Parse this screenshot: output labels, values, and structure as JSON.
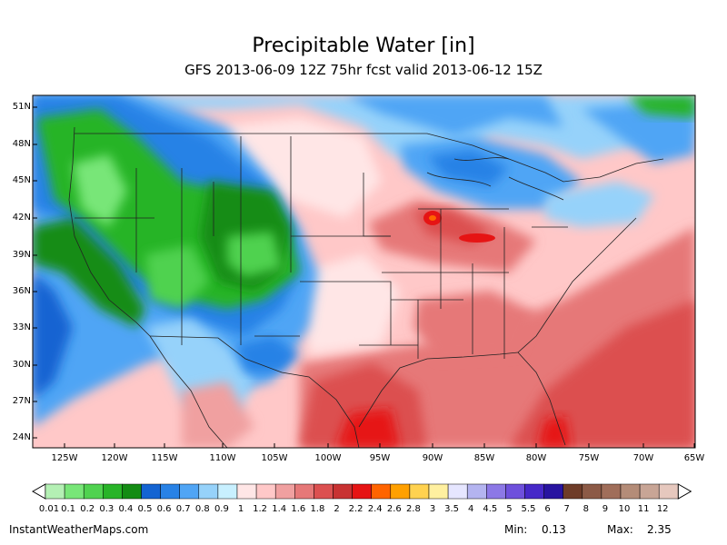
{
  "header": {
    "title": "Precipitable Water [in]",
    "subtitle": "GFS 2013-06-09 12Z 75hr fcst valid 2013-06-12 15Z"
  },
  "axes": {
    "lat_labels": [
      "51N",
      "48N",
      "45N",
      "42N",
      "39N",
      "36N",
      "33N",
      "30N",
      "27N",
      "24N"
    ],
    "lon_labels": [
      "125W",
      "120W",
      "115W",
      "110W",
      "105W",
      "100W",
      "95W",
      "90W",
      "85W",
      "80W",
      "75W",
      "70W",
      "65W"
    ]
  },
  "colorbar": {
    "labels": [
      "0.01",
      "0.1",
      "0.2",
      "0.3",
      "0.4",
      "0.5",
      "0.6",
      "0.7",
      "0.8",
      "0.9",
      "1",
      "1.2",
      "1.4",
      "1.6",
      "1.8",
      "2",
      "2.2",
      "2.4",
      "2.6",
      "2.8",
      "3",
      "3.5",
      "4",
      "4.5",
      "5",
      "5.5",
      "6",
      "7",
      "8",
      "9",
      "10",
      "11",
      "12"
    ],
    "colors": [
      "#b4f0b4",
      "#78e678",
      "#50d250",
      "#28b428",
      "#148c14",
      "#1464d2",
      "#2882e6",
      "#50a5f5",
      "#96d2fa",
      "#c8f0ff",
      "#ffe6e6",
      "#ffc8c8",
      "#f0a0a0",
      "#e67878",
      "#dc5050",
      "#c83232",
      "#e61414",
      "#ff6400",
      "#ffa000",
      "#ffd250",
      "#fff0a0",
      "#e6e6ff",
      "#b4b4f0",
      "#8c78e6",
      "#6e50dc",
      "#4628c8",
      "#2814a0",
      "#6e3c28",
      "#8c5a46",
      "#a06e5a",
      "#b48c78",
      "#c8a596",
      "#e6c8be"
    ]
  },
  "footer": {
    "site": "InstantWeatherMaps.com",
    "min_label": "Min:",
    "min_value": "0.13",
    "max_label": "Max:",
    "max_value": "2.35"
  }
}
